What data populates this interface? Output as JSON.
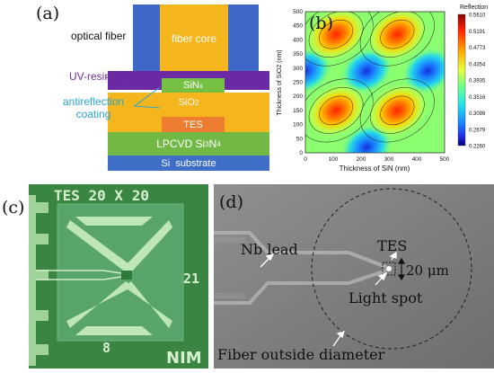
{
  "panels": {
    "a": {
      "label": "(a)",
      "optical_fiber": "optical fiber",
      "fiber_core": "fiber core",
      "uv_resin": "UV-resin",
      "antireflection": "antireflection",
      "coating": "coating",
      "sinx": "SiN",
      "sinx_sub": "x",
      "sio2": "SiO",
      "sio2_sub": "2",
      "tes": "TES",
      "lpcvd": "LPCVD Si",
      "lpcvd_sub1": "3",
      "lpcvd_n": "N",
      "lpcvd_sub2": "4",
      "substrate": "Si  substrate",
      "colors": {
        "fiber": "#3f67c8",
        "core": "#f5b51d",
        "resin": "#6b2aa3",
        "sin": "#76c043",
        "sio2": "#f5b51d",
        "tes": "#ee7d31",
        "lpcvd": "#72b844",
        "substrate": "#3e6ec6",
        "uv_text": "#7030a0",
        "ar_text": "#2aa5cc"
      }
    },
    "b": {
      "label": "(b)",
      "ylabel": "Thickness of SiO2 (nm)",
      "xlabel": "Thickness of SiN (nm)",
      "colorbar_title": "Reflection",
      "colorbar_ticks": [
        "0.5610",
        "0.5191",
        "0.4773",
        "0.4354",
        "0.3935",
        "0.3516",
        "0.3098",
        "0.2679",
        "0.2260"
      ],
      "colorbar_colors": [
        "#8b0000",
        "#ff2200",
        "#ffaa00",
        "#e8ff3a",
        "#6dff8a",
        "#25e8e8",
        "#1a8cff",
        "#2233ee",
        "#000080"
      ]
    },
    "c": {
      "label": "(c)",
      "title": "TES 20 X 20",
      "num21": "21",
      "num8": "8",
      "nim": "NIM"
    },
    "d": {
      "label": "(d)",
      "nb_lead": "Nb lead",
      "tes": "TES",
      "size": "20 μm",
      "light_spot": "Light spot",
      "fiber_od": "Fiber outside diameter"
    }
  },
  "chart_data": {
    "type": "heatmap",
    "title": "",
    "xlabel": "Thickness of SiN (nm)",
    "ylabel": "Thickness of SiO2 (nm)",
    "xlim": [
      0,
      500
    ],
    "ylim": [
      0,
      500
    ],
    "x_ticks": [
      0,
      100,
      200,
      300,
      400,
      500
    ],
    "y_ticks": [
      0,
      50,
      100,
      150,
      200,
      250,
      300,
      350,
      400,
      450,
      500
    ],
    "colorbar": {
      "label": "Reflection",
      "min": 0.226,
      "max": 0.561
    },
    "maxima_centers": [
      [
        110,
        420
      ],
      [
        330,
        420
      ],
      [
        110,
        150
      ],
      [
        330,
        150
      ]
    ],
    "minima_centers": [
      [
        220,
        290
      ],
      [
        0,
        290
      ],
      [
        440,
        290
      ],
      [
        220,
        20
      ]
    ]
  }
}
